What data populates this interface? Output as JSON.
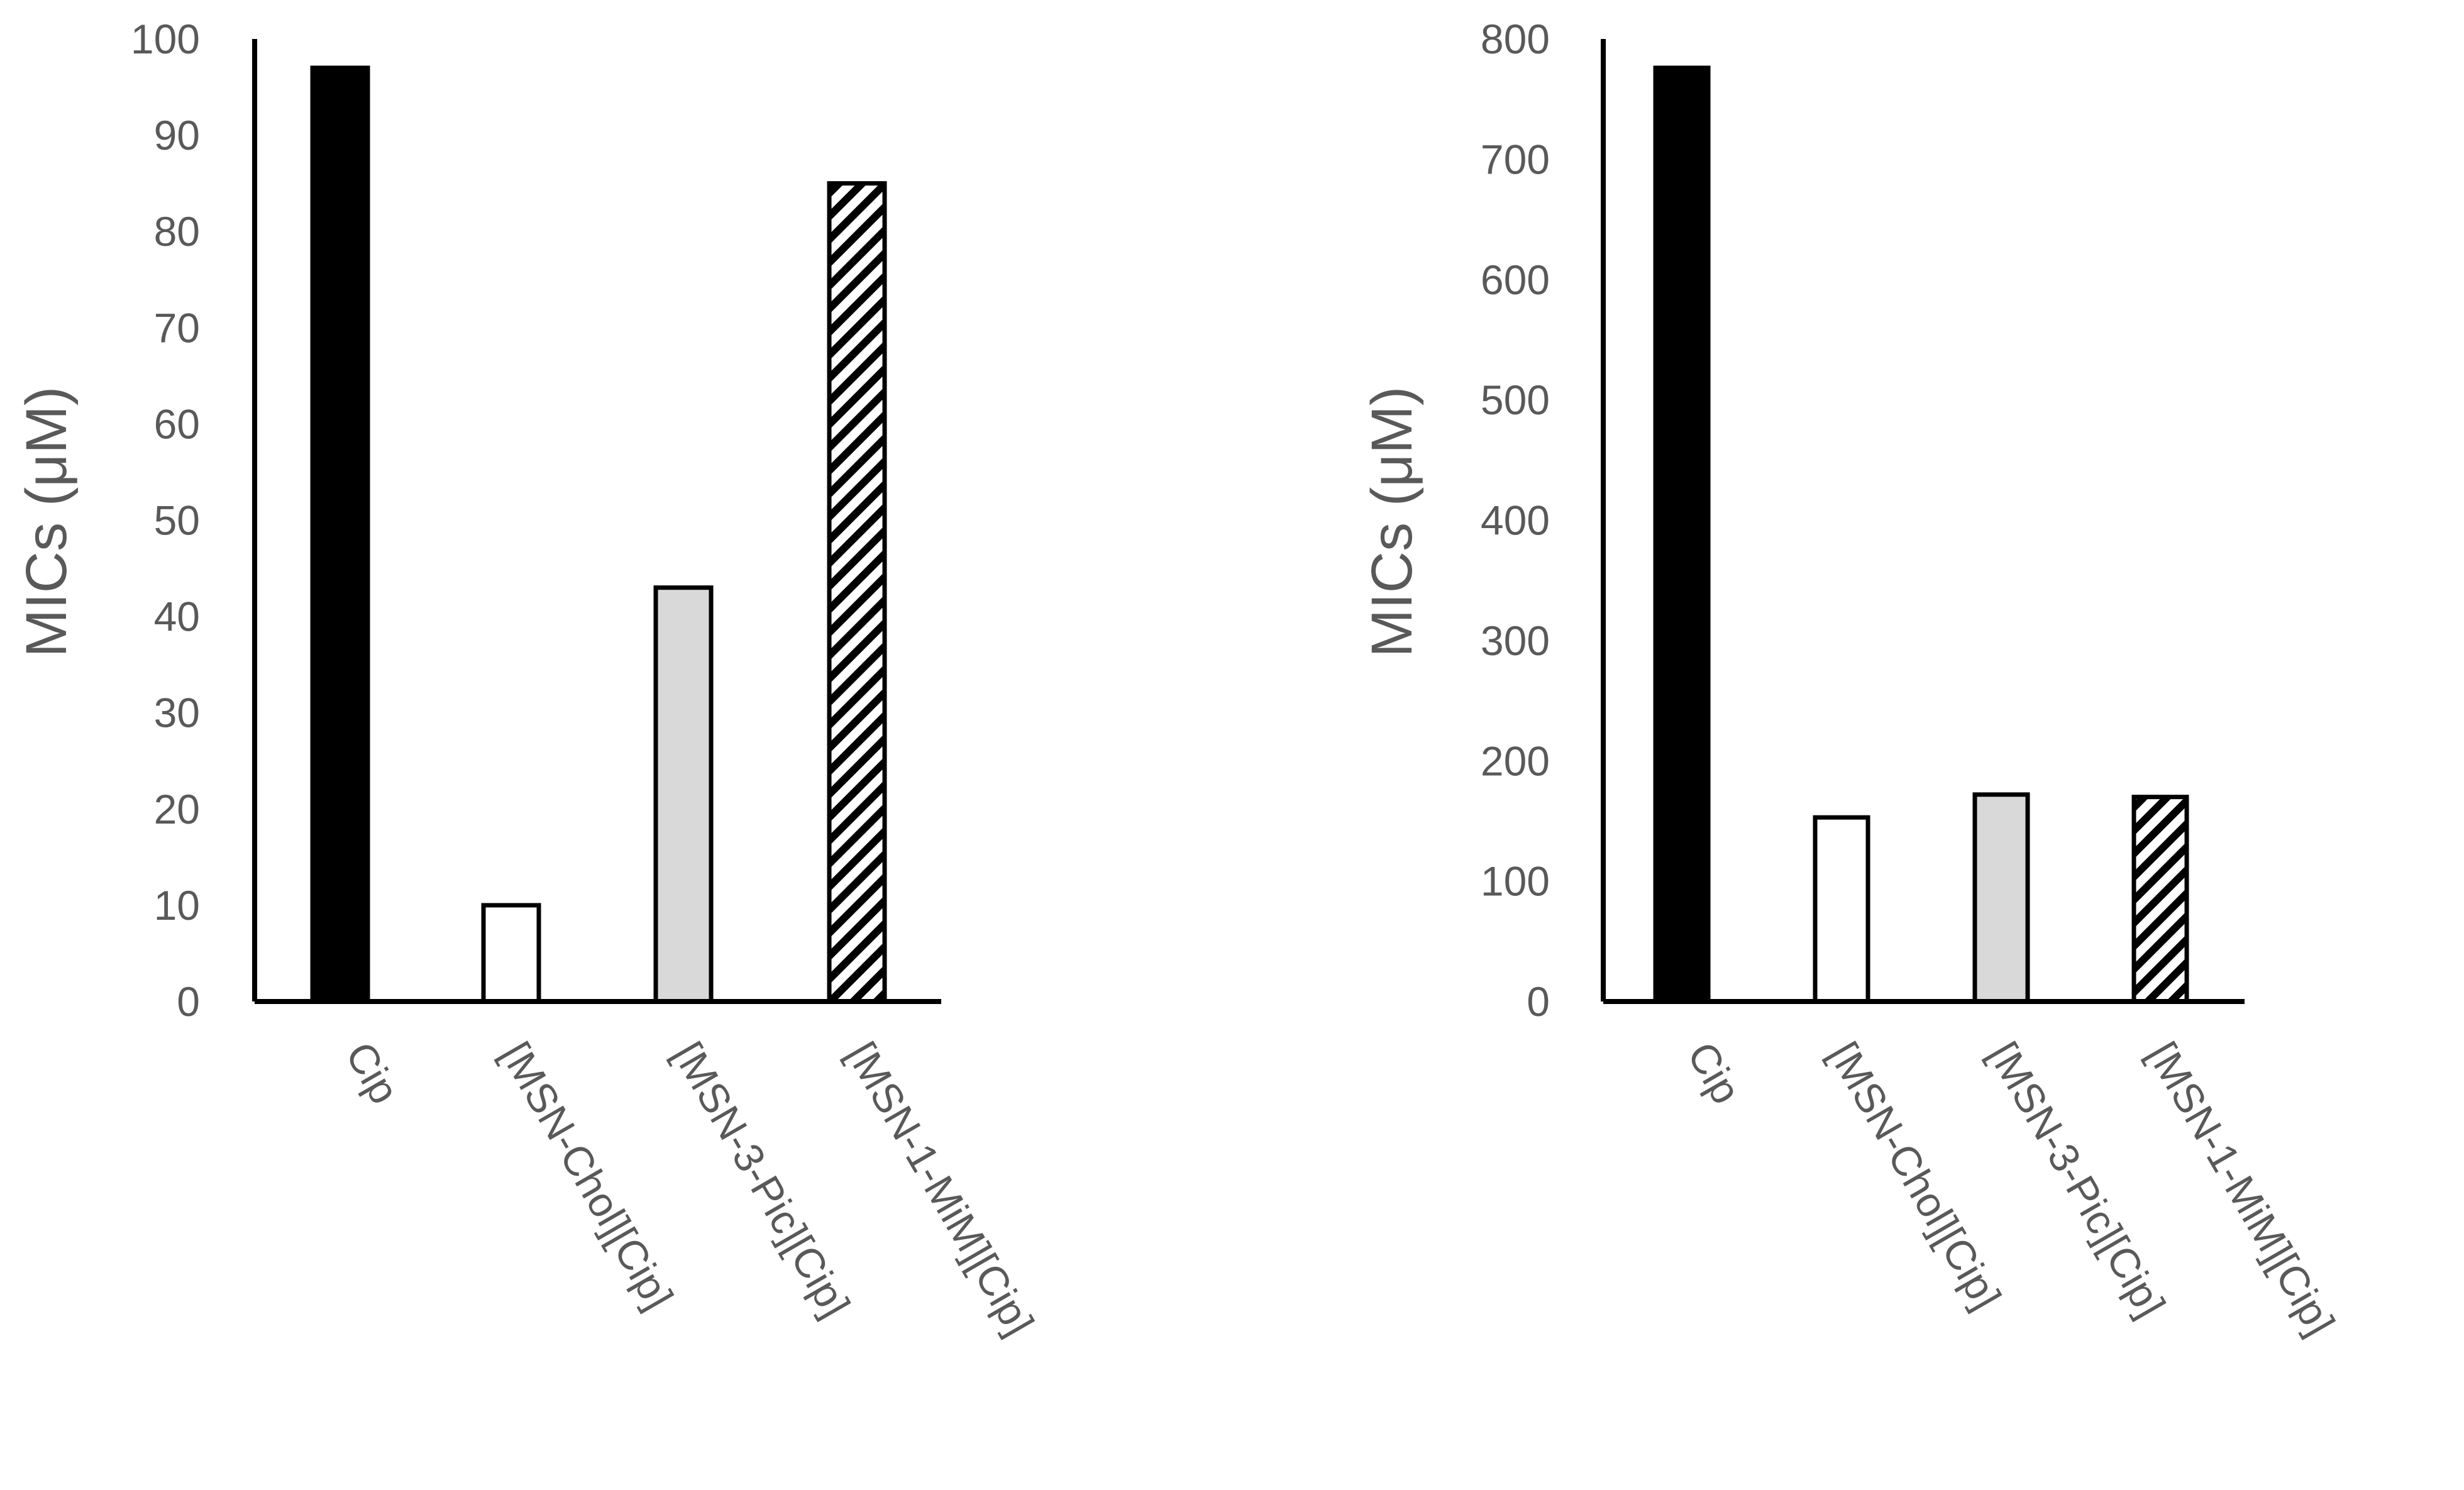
{
  "chart_data": [
    {
      "type": "bar",
      "categories": [
        "Cip",
        "[MSN-Chol][Cip]",
        "[MSN-3-Pic][Cip]",
        "[MSN-1-MiM][Cip]"
      ],
      "values": [
        97,
        10,
        43,
        85
      ],
      "ylabel": "MICs (μM)",
      "ylim": [
        0,
        100
      ],
      "yticks": [
        0,
        10,
        20,
        30,
        40,
        50,
        60,
        70,
        80,
        90,
        100
      ],
      "grid": false,
      "legend": "none",
      "bar_styles": [
        "solid-black",
        "white",
        "light-gray",
        "diagonal-hatch"
      ]
    },
    {
      "type": "bar",
      "categories": [
        "Cip",
        "[MSN-Chol][Cip]",
        "[MSN-3-Pic][Cip]",
        "[MSN-1-MiM][Cip]"
      ],
      "values": [
        776,
        153,
        172,
        170
      ],
      "ylabel": "MICs (μM)",
      "ylim": [
        0,
        800
      ],
      "yticks": [
        0,
        100,
        200,
        300,
        400,
        500,
        600,
        700,
        800
      ],
      "grid": false,
      "legend": "none",
      "bar_styles": [
        "solid-black",
        "white",
        "light-gray",
        "diagonal-hatch"
      ]
    }
  ],
  "colors": {
    "solid-black": "#000000",
    "white": "#ffffff",
    "light-gray": "#d9d9d9",
    "axis": "#000000",
    "text": "#595959"
  }
}
